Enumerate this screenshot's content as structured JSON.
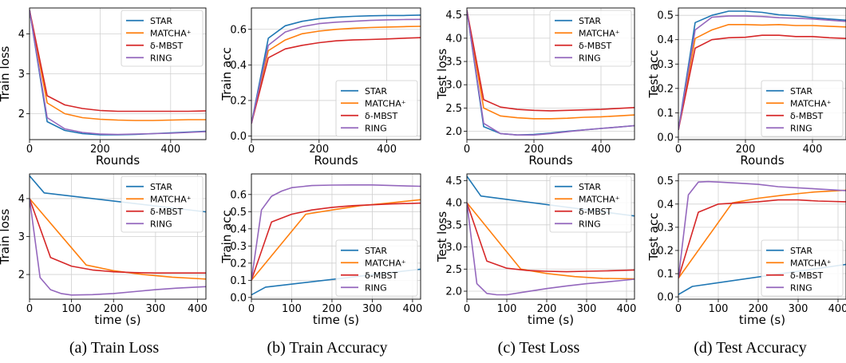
{
  "captions": [
    "(a) Train Loss",
    "(b) Train Accuracy",
    "(c) Test Loss",
    "(d) Test Accuracy"
  ],
  "series_colors": {
    "STAR": "#1f77b4",
    "MATCHA⁺": "#ff7f0e",
    "δ-MBST": "#d62728",
    "RING": "#9467bd"
  },
  "chart_data": [
    {
      "type": "line",
      "panel": "a-top",
      "title": "",
      "xlabel": "Rounds",
      "ylabel": "Train loss",
      "xlim": [
        0,
        500
      ],
      "ylim": [
        1.35,
        4.65
      ],
      "xticks": [
        0,
        200,
        400
      ],
      "yticks": [
        2,
        3,
        4
      ],
      "grid": true,
      "legend": "top-right",
      "series": [
        {
          "name": "STAR",
          "x": [
            0,
            50,
            100,
            150,
            200,
            250,
            300,
            350,
            400,
            450,
            500
          ],
          "y": [
            4.6,
            1.8,
            1.58,
            1.5,
            1.47,
            1.47,
            1.48,
            1.5,
            1.52,
            1.54,
            1.56
          ]
        },
        {
          "name": "MATCHA⁺",
          "x": [
            0,
            50,
            100,
            150,
            200,
            250,
            300,
            350,
            400,
            450,
            500
          ],
          "y": [
            4.6,
            2.27,
            2.0,
            1.9,
            1.86,
            1.84,
            1.83,
            1.83,
            1.84,
            1.85,
            1.85
          ]
        },
        {
          "name": "δ-MBST",
          "x": [
            0,
            50,
            100,
            150,
            200,
            250,
            300,
            350,
            400,
            450,
            500
          ],
          "y": [
            4.6,
            2.45,
            2.22,
            2.13,
            2.08,
            2.06,
            2.06,
            2.06,
            2.06,
            2.06,
            2.07
          ]
        },
        {
          "name": "RING",
          "x": [
            0,
            50,
            100,
            150,
            200,
            250,
            300,
            350,
            400,
            450,
            500
          ],
          "y": [
            4.6,
            1.9,
            1.62,
            1.53,
            1.49,
            1.48,
            1.49,
            1.5,
            1.51,
            1.53,
            1.55
          ]
        }
      ]
    },
    {
      "type": "line",
      "panel": "b-top",
      "title": "",
      "xlabel": "Rounds",
      "ylabel": "Train acc",
      "xlim": [
        0,
        500
      ],
      "ylim": [
        -0.02,
        0.72
      ],
      "xticks": [
        0,
        200,
        400
      ],
      "yticks": [
        0.0,
        0.2,
        0.4,
        0.6
      ],
      "grid": true,
      "legend": "bottom-right",
      "series": [
        {
          "name": "STAR",
          "x": [
            0,
            50,
            100,
            150,
            200,
            250,
            300,
            350,
            400,
            450,
            500
          ],
          "y": [
            0.07,
            0.55,
            0.62,
            0.645,
            0.66,
            0.668,
            0.673,
            0.676,
            0.678,
            0.678,
            0.68
          ]
        },
        {
          "name": "MATCHA⁺",
          "x": [
            0,
            50,
            100,
            150,
            200,
            250,
            300,
            350,
            400,
            450,
            500
          ],
          "y": [
            0.07,
            0.48,
            0.54,
            0.575,
            0.59,
            0.6,
            0.606,
            0.61,
            0.613,
            0.615,
            0.617
          ]
        },
        {
          "name": "δ-MBST",
          "x": [
            0,
            50,
            100,
            150,
            200,
            250,
            300,
            350,
            400,
            450,
            500
          ],
          "y": [
            0.07,
            0.44,
            0.49,
            0.51,
            0.525,
            0.535,
            0.54,
            0.543,
            0.546,
            0.55,
            0.553
          ]
        },
        {
          "name": "RING",
          "x": [
            0,
            50,
            100,
            150,
            200,
            250,
            300,
            350,
            400,
            450,
            500
          ],
          "y": [
            0.07,
            0.51,
            0.585,
            0.615,
            0.632,
            0.64,
            0.645,
            0.65,
            0.653,
            0.655,
            0.656
          ]
        }
      ]
    },
    {
      "type": "line",
      "panel": "c-top",
      "title": "",
      "xlabel": "Rounds",
      "ylabel": "Test loss",
      "xlim": [
        0,
        500
      ],
      "ylim": [
        1.82,
        4.65
      ],
      "xticks": [
        0,
        200,
        400
      ],
      "yticks": [
        2.0,
        2.5,
        3.0,
        3.5,
        4.0,
        4.5
      ],
      "grid": true,
      "legend": "top-right",
      "series": [
        {
          "name": "STAR",
          "x": [
            0,
            50,
            100,
            150,
            200,
            250,
            300,
            350,
            400,
            450,
            500
          ],
          "y": [
            4.6,
            2.1,
            1.95,
            1.92,
            1.93,
            1.96,
            2.0,
            2.03,
            2.06,
            2.09,
            2.12
          ]
        },
        {
          "name": "MATCHA⁺",
          "x": [
            0,
            50,
            100,
            150,
            200,
            250,
            300,
            350,
            400,
            450,
            500
          ],
          "y": [
            4.6,
            2.5,
            2.33,
            2.29,
            2.27,
            2.27,
            2.28,
            2.3,
            2.31,
            2.33,
            2.35
          ]
        },
        {
          "name": "δ-MBST",
          "x": [
            0,
            50,
            100,
            150,
            200,
            250,
            300,
            350,
            400,
            450,
            500
          ],
          "y": [
            4.6,
            2.68,
            2.52,
            2.47,
            2.45,
            2.44,
            2.45,
            2.46,
            2.47,
            2.49,
            2.51
          ]
        },
        {
          "name": "RING",
          "x": [
            0,
            50,
            100,
            150,
            200,
            250,
            300,
            350,
            400,
            450,
            500
          ],
          "y": [
            4.6,
            2.17,
            1.95,
            1.92,
            1.92,
            1.95,
            1.99,
            2.03,
            2.06,
            2.09,
            2.12
          ]
        }
      ]
    },
    {
      "type": "line",
      "panel": "d-top",
      "title": "",
      "xlabel": "Rounds",
      "ylabel": "Test acc",
      "xlim": [
        0,
        500
      ],
      "ylim": [
        -0.01,
        0.53
      ],
      "xticks": [
        0,
        200,
        400
      ],
      "yticks": [
        0.0,
        0.1,
        0.2,
        0.3,
        0.4,
        0.5
      ],
      "grid": true,
      "legend": "bottom-right",
      "series": [
        {
          "name": "STAR",
          "x": [
            0,
            50,
            100,
            150,
            200,
            250,
            300,
            350,
            400,
            450,
            500
          ],
          "y": [
            0.03,
            0.47,
            0.5,
            0.517,
            0.517,
            0.512,
            0.502,
            0.498,
            0.49,
            0.485,
            0.48
          ]
        },
        {
          "name": "MATCHA⁺",
          "x": [
            0,
            50,
            100,
            150,
            200,
            250,
            300,
            350,
            400,
            450,
            500
          ],
          "y": [
            0.03,
            0.405,
            0.44,
            0.462,
            0.462,
            0.46,
            0.462,
            0.458,
            0.458,
            0.455,
            0.452
          ]
        },
        {
          "name": "δ-MBST",
          "x": [
            0,
            50,
            100,
            150,
            200,
            250,
            300,
            350,
            400,
            450,
            500
          ],
          "y": [
            0.03,
            0.365,
            0.4,
            0.408,
            0.41,
            0.418,
            0.418,
            0.413,
            0.413,
            0.408,
            0.405
          ]
        },
        {
          "name": "RING",
          "x": [
            0,
            50,
            100,
            150,
            200,
            250,
            300,
            350,
            400,
            450,
            500
          ],
          "y": [
            0.03,
            0.44,
            0.492,
            0.497,
            0.497,
            0.495,
            0.49,
            0.488,
            0.485,
            0.48,
            0.475
          ]
        }
      ]
    },
    {
      "type": "line",
      "panel": "a-bottom",
      "title": "",
      "xlabel": "time (s)",
      "ylabel": "Train loss",
      "xlim": [
        0,
        420
      ],
      "ylim": [
        1.35,
        4.65
      ],
      "xticks": [
        0,
        100,
        200,
        300,
        400
      ],
      "yticks": [
        2,
        3,
        4
      ],
      "grid": true,
      "legend": "top-right",
      "series": [
        {
          "name": "STAR",
          "x": [
            0,
            35,
            420
          ],
          "y": [
            4.6,
            4.15,
            3.65
          ]
        },
        {
          "name": "MATCHA⁺",
          "x": [
            0,
            135,
            200,
            270,
            340,
            420
          ],
          "y": [
            4.0,
            2.25,
            2.1,
            2.0,
            1.93,
            1.88
          ]
        },
        {
          "name": "δ-MBST",
          "x": [
            0,
            50,
            100,
            150,
            200,
            250,
            300,
            350,
            420
          ],
          "y": [
            4.0,
            2.45,
            2.22,
            2.12,
            2.07,
            2.05,
            2.04,
            2.04,
            2.04
          ]
        },
        {
          "name": "RING",
          "x": [
            0,
            25,
            50,
            75,
            100,
            150,
            200,
            250,
            300,
            350,
            420
          ],
          "y": [
            4.0,
            1.92,
            1.6,
            1.5,
            1.46,
            1.47,
            1.5,
            1.55,
            1.6,
            1.64,
            1.68
          ]
        }
      ]
    },
    {
      "type": "line",
      "panel": "b-bottom",
      "title": "",
      "xlabel": "time (s)",
      "ylabel": "Train acc",
      "xlim": [
        0,
        420
      ],
      "ylim": [
        -0.01,
        0.72
      ],
      "xticks": [
        0,
        100,
        200,
        300,
        400
      ],
      "yticks": [
        0.0,
        0.1,
        0.2,
        0.3,
        0.4,
        0.5,
        0.6
      ],
      "grid": true,
      "legend": "bottom-right",
      "series": [
        {
          "name": "STAR",
          "x": [
            0,
            35,
            420
          ],
          "y": [
            0.015,
            0.06,
            0.165
          ]
        },
        {
          "name": "MATCHA⁺",
          "x": [
            0,
            135,
            200,
            270,
            340,
            420
          ],
          "y": [
            0.1,
            0.485,
            0.51,
            0.535,
            0.55,
            0.57
          ]
        },
        {
          "name": "δ-MBST",
          "x": [
            0,
            50,
            100,
            150,
            200,
            250,
            300,
            350,
            420
          ],
          "y": [
            0.1,
            0.44,
            0.485,
            0.51,
            0.525,
            0.535,
            0.54,
            0.545,
            0.55
          ]
        },
        {
          "name": "RING",
          "x": [
            0,
            25,
            50,
            75,
            100,
            150,
            200,
            250,
            300,
            350,
            420
          ],
          "y": [
            0.1,
            0.51,
            0.59,
            0.62,
            0.64,
            0.652,
            0.655,
            0.656,
            0.656,
            0.652,
            0.648
          ]
        }
      ]
    },
    {
      "type": "line",
      "panel": "c-bottom",
      "title": "",
      "xlabel": "time (s)",
      "ylabel": "Test loss",
      "xlim": [
        0,
        420
      ],
      "ylim": [
        1.82,
        4.65
      ],
      "xticks": [
        0,
        100,
        200,
        300,
        400
      ],
      "yticks": [
        2.0,
        2.5,
        3.0,
        3.5,
        4.0,
        4.5
      ],
      "grid": true,
      "legend": "top-right",
      "series": [
        {
          "name": "STAR",
          "x": [
            0,
            35,
            420
          ],
          "y": [
            4.6,
            4.15,
            3.7
          ]
        },
        {
          "name": "MATCHA⁺",
          "x": [
            0,
            135,
            200,
            270,
            340,
            420
          ],
          "y": [
            4.0,
            2.5,
            2.4,
            2.33,
            2.29,
            2.28
          ]
        },
        {
          "name": "δ-MBST",
          "x": [
            0,
            50,
            100,
            150,
            200,
            250,
            300,
            350,
            420
          ],
          "y": [
            4.0,
            2.68,
            2.52,
            2.47,
            2.45,
            2.44,
            2.45,
            2.46,
            2.48
          ]
        },
        {
          "name": "RING",
          "x": [
            0,
            25,
            50,
            75,
            100,
            150,
            200,
            250,
            300,
            350,
            420
          ],
          "y": [
            4.0,
            2.17,
            1.95,
            1.92,
            1.92,
            1.99,
            2.06,
            2.12,
            2.17,
            2.21,
            2.27
          ]
        }
      ]
    },
    {
      "type": "line",
      "panel": "d-bottom",
      "title": "",
      "xlabel": "time (s)",
      "ylabel": "Test acc",
      "xlim": [
        0,
        420
      ],
      "ylim": [
        -0.01,
        0.53
      ],
      "xticks": [
        0,
        100,
        200,
        300,
        400
      ],
      "yticks": [
        0.0,
        0.1,
        0.2,
        0.3,
        0.4,
        0.5
      ],
      "grid": true,
      "legend": "bottom-right",
      "series": [
        {
          "name": "STAR",
          "x": [
            0,
            35,
            420
          ],
          "y": [
            0.01,
            0.045,
            0.14
          ]
        },
        {
          "name": "MATCHA⁺",
          "x": [
            0,
            135,
            200,
            270,
            340,
            420
          ],
          "y": [
            0.08,
            0.405,
            0.425,
            0.44,
            0.452,
            0.46
          ]
        },
        {
          "name": "δ-MBST",
          "x": [
            0,
            50,
            100,
            150,
            200,
            250,
            300,
            350,
            420
          ],
          "y": [
            0.08,
            0.365,
            0.4,
            0.405,
            0.41,
            0.418,
            0.418,
            0.413,
            0.41
          ]
        },
        {
          "name": "RING",
          "x": [
            0,
            25,
            50,
            75,
            100,
            150,
            200,
            250,
            300,
            350,
            420
          ],
          "y": [
            0.08,
            0.44,
            0.495,
            0.497,
            0.495,
            0.49,
            0.485,
            0.475,
            0.47,
            0.465,
            0.458
          ]
        }
      ]
    }
  ]
}
